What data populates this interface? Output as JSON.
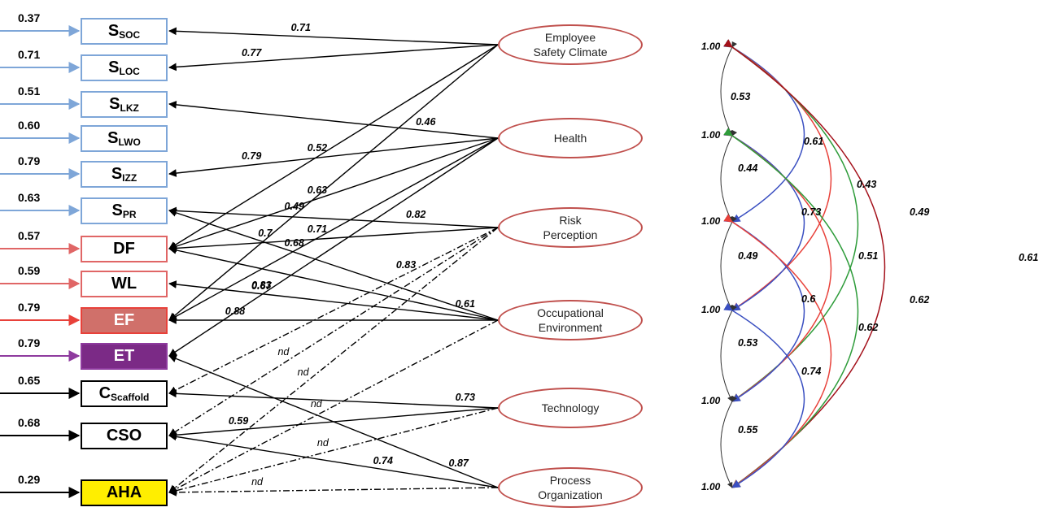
{
  "indicators": [
    {
      "id": "ssoc",
      "main": "S",
      "sub": "SOC",
      "input": "0.37",
      "color": "#7ea6d8",
      "fill": "#ffffff",
      "text_color": "#000000"
    },
    {
      "id": "sloc",
      "main": "S",
      "sub": "LOC",
      "input": "0.71",
      "color": "#7ea6d8",
      "fill": "#ffffff",
      "text_color": "#000000"
    },
    {
      "id": "slkz",
      "main": "S",
      "sub": "LKZ",
      "input": "0.51",
      "color": "#7ea6d8",
      "fill": "#ffffff",
      "text_color": "#000000"
    },
    {
      "id": "slwo",
      "main": "S",
      "sub": "LWO",
      "input": "0.60",
      "color": "#7ea6d8",
      "fill": "#ffffff",
      "text_color": "#000000"
    },
    {
      "id": "sizz",
      "main": "S",
      "sub": "IZZ",
      "input": "0.79",
      "color": "#7ea6d8",
      "fill": "#ffffff",
      "text_color": "#000000"
    },
    {
      "id": "spr",
      "main": "S",
      "sub": "PR",
      "input": "0.63",
      "color": "#7ea6d8",
      "fill": "#ffffff",
      "text_color": "#000000"
    },
    {
      "id": "df",
      "main": "DF",
      "sub": "",
      "input": "0.57",
      "color": "#e06666",
      "fill": "#ffffff",
      "text_color": "#000000"
    },
    {
      "id": "wl",
      "main": "WL",
      "sub": "",
      "input": "0.59",
      "color": "#e06666",
      "fill": "#ffffff",
      "text_color": "#000000"
    },
    {
      "id": "ef",
      "main": "EF",
      "sub": "",
      "input": "0.79",
      "color": "#e8413a",
      "fill": "#d0706a",
      "text_color": "#ffffff"
    },
    {
      "id": "et",
      "main": "ET",
      "sub": "",
      "input": "0.79",
      "color": "#8e3a9e",
      "fill": "#7b2a86",
      "text_color": "#ffffff"
    },
    {
      "id": "cscaffold",
      "main": "C",
      "sub": "Scaffold",
      "input": "0.65",
      "color": "#000000",
      "fill": "#ffffff",
      "text_color": "#000000"
    },
    {
      "id": "cso",
      "main": "CSO",
      "sub": "",
      "input": "0.68",
      "color": "#000000",
      "fill": "#ffffff",
      "text_color": "#000000"
    },
    {
      "id": "aha",
      "main": "AHA",
      "sub": "",
      "input": "0.29",
      "color": "#000000",
      "fill": "#ffee00",
      "text_color": "#000000"
    }
  ],
  "factors": [
    {
      "id": "esc",
      "lines": [
        "Employee",
        "Safety Climate"
      ]
    },
    {
      "id": "health",
      "lines": [
        "Health"
      ]
    },
    {
      "id": "risk",
      "lines": [
        "Risk",
        "Perception"
      ]
    },
    {
      "id": "occ",
      "lines": [
        "Occupational",
        "Environment"
      ]
    },
    {
      "id": "tech",
      "lines": [
        "Technology"
      ]
    },
    {
      "id": "proc",
      "lines": [
        "Process",
        "Organization"
      ]
    }
  ],
  "loadings": [
    {
      "from": "esc",
      "to": "ssoc",
      "value": "0.71",
      "style": "solid"
    },
    {
      "from": "esc",
      "to": "sloc",
      "value": "0.77",
      "style": "solid"
    },
    {
      "from": "esc",
      "to": "df",
      "value": "0.52",
      "style": "solid"
    },
    {
      "from": "esc",
      "to": "ef",
      "value": "0.49",
      "style": "solid"
    },
    {
      "from": "health",
      "to": "slkz",
      "value": "0.46",
      "style": "solid"
    },
    {
      "from": "health",
      "to": "sizz",
      "value": "0.79",
      "style": "solid"
    },
    {
      "from": "health",
      "to": "df",
      "value": "0.63",
      "style": "solid"
    },
    {
      "from": "health",
      "to": "ef",
      "value": "0.71",
      "style": "solid"
    },
    {
      "from": "health",
      "to": "et",
      "value": "0.67",
      "style": "solid"
    },
    {
      "from": "risk",
      "to": "spr",
      "value": "0.82",
      "style": "solid"
    },
    {
      "from": "risk",
      "to": "df",
      "value": "0.7",
      "style": "solid"
    },
    {
      "from": "risk",
      "to": "cscaffold",
      "value": "0.83",
      "style": "dashdot"
    },
    {
      "from": "risk",
      "to": "cso",
      "value": "nd",
      "style": "dashdot"
    },
    {
      "from": "risk",
      "to": "aha",
      "value": "nd",
      "style": "dashdot"
    },
    {
      "from": "occ",
      "to": "spr",
      "value": "0.68",
      "style": "solid"
    },
    {
      "from": "occ",
      "to": "df",
      "value": "0.61",
      "style": "solid"
    },
    {
      "from": "occ",
      "to": "wl",
      "value": "0.83",
      "style": "solid"
    },
    {
      "from": "occ",
      "to": "ef",
      "value": "0.88",
      "style": "solid"
    },
    {
      "from": "occ",
      "to": "aha",
      "value": "nd",
      "style": "dashdot"
    },
    {
      "from": "tech",
      "to": "cscaffold",
      "value": "0.73",
      "style": "solid"
    },
    {
      "from": "tech",
      "to": "cso",
      "value": "0.59",
      "style": "solid"
    },
    {
      "from": "tech",
      "to": "aha",
      "value": "nd",
      "style": "dashdot"
    },
    {
      "from": "proc",
      "to": "cso",
      "value": "0.74",
      "style": "solid"
    },
    {
      "from": "proc",
      "to": "et",
      "value": "0.87",
      "style": "solid"
    },
    {
      "from": "proc",
      "to": "aha",
      "value": "nd",
      "style": "dashdot"
    }
  ],
  "correlations": {
    "node_variance": [
      "1.00",
      "1.00",
      "1.00",
      "1.00",
      "1.00",
      "1.00"
    ],
    "arcs": [
      {
        "a": 0,
        "b": 1,
        "value": "0.53",
        "color": "#333333"
      },
      {
        "a": 0,
        "b": 2,
        "value": "0.61",
        "color": "#3a4fc1"
      },
      {
        "a": 0,
        "b": 3,
        "value": "0.43",
        "color": "#e8413a"
      },
      {
        "a": 0,
        "b": 4,
        "value": "0.49",
        "color": "#2e9c3a"
      },
      {
        "a": 0,
        "b": 5,
        "value": "0.61",
        "color": "#a4111b"
      },
      {
        "a": 1,
        "b": 2,
        "value": "0.44",
        "color": "#333333"
      },
      {
        "a": 1,
        "b": 3,
        "value": "0.73",
        "color": "#3a4fc1"
      },
      {
        "a": 1,
        "b": 4,
        "value": "0.51",
        "color": "#e8413a"
      },
      {
        "a": 1,
        "b": 5,
        "value": "0.62",
        "color": "#2e9c3a"
      },
      {
        "a": 2,
        "b": 3,
        "value": "0.49",
        "color": "#333333"
      },
      {
        "a": 2,
        "b": 4,
        "value": "0.6",
        "color": "#3a4fc1"
      },
      {
        "a": 2,
        "b": 5,
        "value": "0.62",
        "color": "#e8413a"
      },
      {
        "a": 3,
        "b": 4,
        "value": "0.53",
        "color": "#333333"
      },
      {
        "a": 3,
        "b": 5,
        "value": "0.74",
        "color": "#3a4fc1"
      },
      {
        "a": 4,
        "b": 5,
        "value": "0.55",
        "color": "#333333"
      }
    ]
  }
}
